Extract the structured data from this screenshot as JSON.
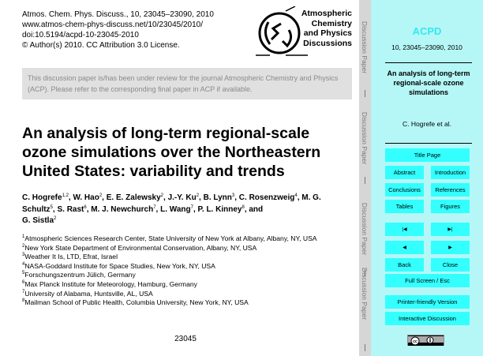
{
  "header": {
    "lines": [
      "Atmos. Chem. Phys. Discuss., 10, 23045–23090, 2010",
      "www.atmos-chem-phys-discuss.net/10/23045/2010/",
      "doi:10.5194/acpd-10-23045-2010",
      "© Author(s) 2010. CC Attribution 3.0 License."
    ]
  },
  "logo": {
    "lines": [
      "Atmospheric",
      "Chemistry",
      "and Physics",
      "Discussions"
    ]
  },
  "notice": "This discussion paper is/has been under review for the journal Atmospheric Chemistry and Physics (ACP). Please refer to the corresponding final paper in ACP if available.",
  "title": "An analysis of long-term regional-scale ozone simulations over the Northeastern United States: variability and trends",
  "authors": [
    {
      "name": "C. Hogrefe",
      "sup": "1,2"
    },
    {
      "name": "W. Hao",
      "sup": "2"
    },
    {
      "name": "E. E. Zalewsky",
      "sup": "2"
    },
    {
      "name": "J.-Y. Ku",
      "sup": "2"
    },
    {
      "name": "B. Lynn",
      "sup": "3"
    },
    {
      "name": "C. Rosenzweig",
      "sup": "4"
    },
    {
      "name": "M. G. Schultz",
      "sup": "5"
    },
    {
      "name": "S. Rast",
      "sup": "6"
    },
    {
      "name": "M. J. Newchurch",
      "sup": "7"
    },
    {
      "name": "L. Wang",
      "sup": "7"
    },
    {
      "name": "P. L. Kinney",
      "sup": "8"
    },
    {
      "name": "G. Sistla",
      "sup": "2"
    }
  ],
  "and_word": "and",
  "affiliations": [
    {
      "n": "1",
      "text": "Atmospheric Sciences Research Center, State University of New York at Albany, Albany, NY, USA"
    },
    {
      "n": "2",
      "text": "New York State Department of Environmental Conservation, Albany, NY, USA"
    },
    {
      "n": "3",
      "text": "Weather It Is, LTD, Efrat, Israel"
    },
    {
      "n": "4",
      "text": "NASA-Goddard Institute for Space Studies, New York, NY, USA"
    },
    {
      "n": "5",
      "text": "Forschungszentrum Jülich, Germany"
    },
    {
      "n": "6",
      "text": "Max Planck Institute for Meteorology, Hamburg, Germany"
    },
    {
      "n": "7",
      "text": "University of Alabama, Huntsville, AL, USA"
    },
    {
      "n": "8",
      "text": "Mailman School of Public Health, Columbia University, New York, NY, USA"
    }
  ],
  "page_number": "23045",
  "strip_label": "Discussion Paper",
  "panel": {
    "journal": "ACPD",
    "citation": "10, 23045–23090, 2010",
    "short_title": "An analysis of long-term regional-scale ozone simulations",
    "authors": "C. Hogrefe et al.",
    "buttons": {
      "title_page": "Title Page",
      "abstract": "Abstract",
      "introduction": "Introduction",
      "conclusions": "Conclusions",
      "references": "References",
      "tables": "Tables",
      "figures": "Figures",
      "first": "|◀",
      "last": "▶|",
      "prev": "◀",
      "next": "▶",
      "back": "Back",
      "close": "Close",
      "fullscreen": "Full Screen / Esc",
      "printer": "Printer-friendly Version",
      "interactive": "Interactive Discussion"
    },
    "accent_color": "#33ffff",
    "panel_color": "#b5f7f7"
  },
  "license_badge": "cc by"
}
